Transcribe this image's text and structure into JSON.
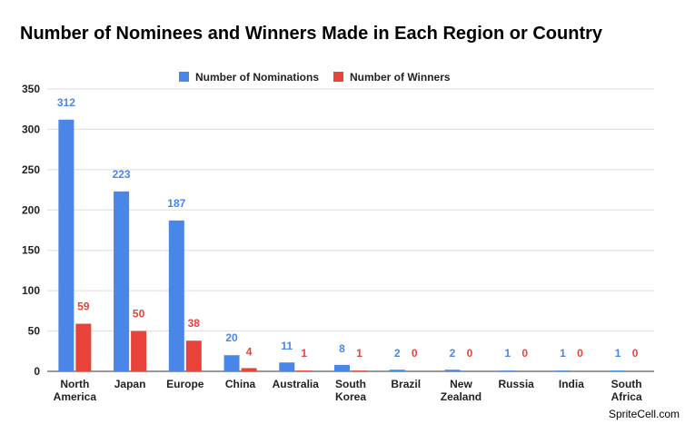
{
  "chart_data": {
    "type": "bar",
    "title": "Number of Nominees and Winners Made in Each Region or Country",
    "categories": [
      [
        "North",
        "America"
      ],
      [
        "Japan"
      ],
      [
        "Europe"
      ],
      [
        "China"
      ],
      [
        "Australia"
      ],
      [
        "South",
        "Korea"
      ],
      [
        "Brazil"
      ],
      [
        "New",
        "Zealand"
      ],
      [
        "Russia"
      ],
      [
        "India"
      ],
      [
        "South",
        "Africa"
      ]
    ],
    "series": [
      {
        "name": "Number of Nominations",
        "color": "#4a86e8",
        "values": [
          312,
          223,
          187,
          20,
          11,
          8,
          2,
          2,
          1,
          1,
          1
        ]
      },
      {
        "name": "Number of Winners",
        "color": "#e8433a",
        "values": [
          59,
          50,
          38,
          4,
          1,
          1,
          0,
          0,
          0,
          0,
          0
        ]
      }
    ],
    "ylim": [
      0,
      350
    ],
    "yticks": [
      0,
      50,
      100,
      150,
      200,
      250,
      300,
      350
    ],
    "grid": true,
    "legend_position": "top-center"
  },
  "watermark": "SpriteCell.com"
}
